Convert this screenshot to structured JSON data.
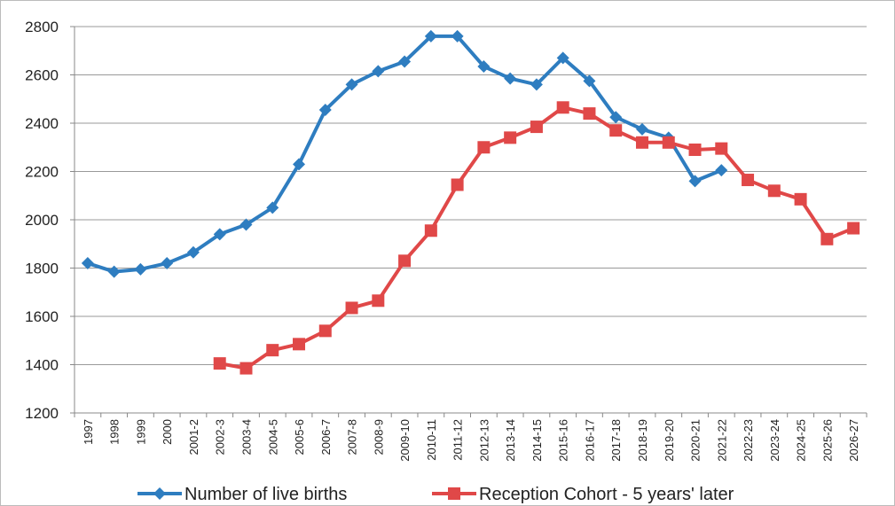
{
  "chart_data": {
    "type": "line",
    "categories": [
      "1997",
      "1998",
      "1999",
      "2000",
      "2001-2",
      "2002-3",
      "2003-4",
      "2004-5",
      "2005-6",
      "2006-7",
      "2007-8",
      "2008-9",
      "2009-10",
      "2010-11",
      "2011-12",
      "2012-13",
      "2013-14",
      "2014-15",
      "2015-16",
      "2016-17",
      "2017-18",
      "2018-19",
      "2019-20",
      "2020-21",
      "2021-22",
      "2022-23",
      "2023-24",
      "2024-25",
      "2025-26",
      "2026-27"
    ],
    "series": [
      {
        "name": "Number of live births",
        "color": "#2e7dc0",
        "marker": "diamond",
        "values": [
          1820,
          1785,
          1795,
          1820,
          1865,
          1940,
          1980,
          2050,
          2230,
          2455,
          2560,
          2615,
          2655,
          2760,
          2760,
          2635,
          2585,
          2560,
          2670,
          2575,
          2425,
          2375,
          2340,
          2160,
          2205,
          null,
          null,
          null,
          null,
          null
        ]
      },
      {
        "name": "Reception Cohort - 5 years' later",
        "color": "#e04848",
        "marker": "square",
        "values": [
          null,
          null,
          null,
          null,
          null,
          1405,
          1385,
          1460,
          1485,
          1540,
          1635,
          1665,
          1830,
          1955,
          2145,
          2300,
          2340,
          2385,
          2465,
          2440,
          2370,
          2320,
          2320,
          2290,
          2295,
          2165,
          2120,
          2085,
          1920,
          1965
        ]
      }
    ],
    "ylim": [
      1200,
      2800
    ],
    "yticks": [
      1200,
      1400,
      1600,
      1800,
      2000,
      2200,
      2400,
      2600,
      2800
    ],
    "grid": true,
    "legend": "bottom"
  }
}
